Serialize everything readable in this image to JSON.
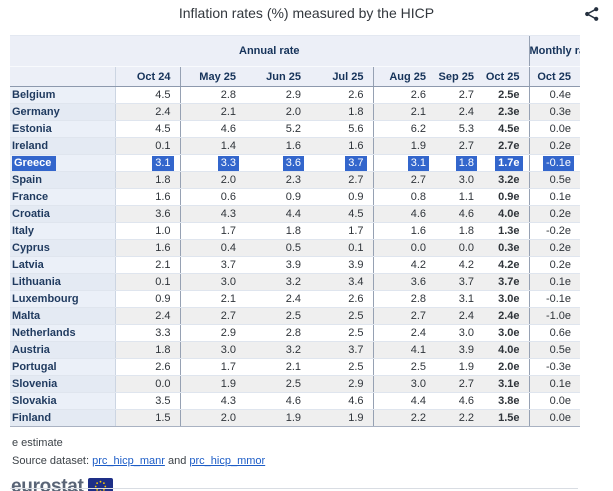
{
  "title": "Inflation rates (%) measured by the HICP",
  "icons": {
    "share": "share-icon",
    "eu_flag": "eu-flag-icon"
  },
  "colors": {
    "highlight_blue": "#3366cc",
    "link_blue": "#1d5dc7",
    "header_bg": "#eceff7",
    "stripe_gray": "#efefef"
  },
  "table": {
    "group_headers": {
      "annual": "Annual rate",
      "monthly": "Monthly rate"
    },
    "columns": [
      "Oct 24",
      "May 25",
      "Jun 25",
      "Jul 25",
      "Aug 25",
      "Sep 25",
      "Oct 25",
      "Oct 25"
    ],
    "rows": [
      {
        "country": "Belgium",
        "highlight": false,
        "values": [
          "4.5",
          "2.8",
          "2.9",
          "2.6",
          "2.6",
          "2.7",
          "2.5e",
          "0.4e"
        ]
      },
      {
        "country": "Germany",
        "highlight": false,
        "values": [
          "2.4",
          "2.1",
          "2.0",
          "1.8",
          "2.1",
          "2.4",
          "2.3e",
          "0.3e"
        ]
      },
      {
        "country": "Estonia",
        "highlight": false,
        "values": [
          "4.5",
          "4.6",
          "5.2",
          "5.6",
          "6.2",
          "5.3",
          "4.5e",
          "0.0e"
        ]
      },
      {
        "country": "Ireland",
        "highlight": false,
        "values": [
          "0.1",
          "1.4",
          "1.6",
          "1.6",
          "1.9",
          "2.7",
          "2.7e",
          "0.2e"
        ]
      },
      {
        "country": "Greece",
        "highlight": true,
        "values": [
          "3.1",
          "3.3",
          "3.6",
          "3.7",
          "3.1",
          "1.8",
          "1.7e",
          "-0.1e"
        ]
      },
      {
        "country": "Spain",
        "highlight": false,
        "values": [
          "1.8",
          "2.0",
          "2.3",
          "2.7",
          "2.7",
          "3.0",
          "3.2e",
          "0.5e"
        ]
      },
      {
        "country": "France",
        "highlight": false,
        "values": [
          "1.6",
          "0.6",
          "0.9",
          "0.9",
          "0.8",
          "1.1",
          "0.9e",
          "0.1e"
        ]
      },
      {
        "country": "Croatia",
        "highlight": false,
        "values": [
          "3.6",
          "4.3",
          "4.4",
          "4.5",
          "4.6",
          "4.6",
          "4.0e",
          "0.2e"
        ]
      },
      {
        "country": "Italy",
        "highlight": false,
        "values": [
          "1.0",
          "1.7",
          "1.8",
          "1.7",
          "1.6",
          "1.8",
          "1.3e",
          "-0.2e"
        ]
      },
      {
        "country": "Cyprus",
        "highlight": false,
        "values": [
          "1.6",
          "0.4",
          "0.5",
          "0.1",
          "0.0",
          "0.0",
          "0.3e",
          "0.2e"
        ]
      },
      {
        "country": "Latvia",
        "highlight": false,
        "values": [
          "2.1",
          "3.7",
          "3.9",
          "3.9",
          "4.2",
          "4.2",
          "4.2e",
          "0.2e"
        ]
      },
      {
        "country": "Lithuania",
        "highlight": false,
        "values": [
          "0.1",
          "3.0",
          "3.2",
          "3.4",
          "3.6",
          "3.7",
          "3.7e",
          "0.1e"
        ]
      },
      {
        "country": "Luxembourg",
        "highlight": false,
        "values": [
          "0.9",
          "2.1",
          "2.4",
          "2.6",
          "2.8",
          "3.1",
          "3.0e",
          "-0.1e"
        ]
      },
      {
        "country": "Malta",
        "highlight": false,
        "values": [
          "2.4",
          "2.7",
          "2.5",
          "2.5",
          "2.7",
          "2.4",
          "2.4e",
          "-1.0e"
        ]
      },
      {
        "country": "Netherlands",
        "highlight": false,
        "values": [
          "3.3",
          "2.9",
          "2.8",
          "2.5",
          "2.4",
          "3.0",
          "3.0e",
          "0.6e"
        ]
      },
      {
        "country": "Austria",
        "highlight": false,
        "values": [
          "1.8",
          "3.0",
          "3.2",
          "3.7",
          "4.1",
          "3.9",
          "4.0e",
          "0.5e"
        ]
      },
      {
        "country": "Portugal",
        "highlight": false,
        "values": [
          "2.6",
          "1.7",
          "2.1",
          "2.5",
          "2.5",
          "1.9",
          "2.0e",
          "-0.3e"
        ]
      },
      {
        "country": "Slovenia",
        "highlight": false,
        "values": [
          "0.0",
          "1.9",
          "2.5",
          "2.9",
          "3.0",
          "2.7",
          "3.1e",
          "0.1e"
        ]
      },
      {
        "country": "Slovakia",
        "highlight": false,
        "values": [
          "3.5",
          "4.3",
          "4.6",
          "4.6",
          "4.4",
          "4.6",
          "3.8e",
          "0.0e"
        ]
      },
      {
        "country": "Finland",
        "highlight": false,
        "values": [
          "1.5",
          "2.0",
          "1.9",
          "1.9",
          "2.2",
          "2.2",
          "1.5e",
          "0.0e"
        ]
      }
    ]
  },
  "footnote": "e estimate",
  "source": {
    "label": "Source dataset:",
    "link1": "prc_hicp_manr",
    "conjunction": "and",
    "link2": "prc_hicp_mmor"
  },
  "logo_text": "eurostat"
}
